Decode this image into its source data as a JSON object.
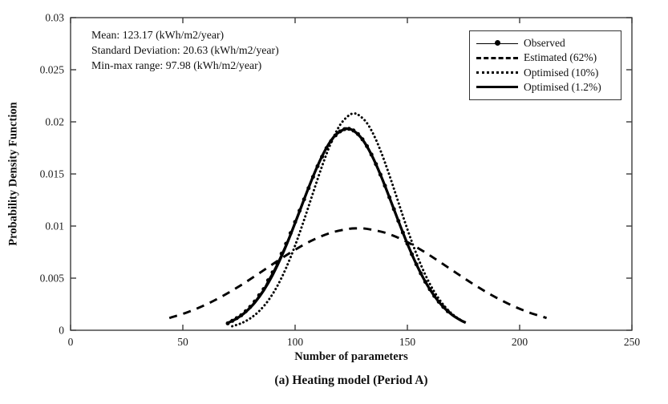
{
  "figure": {
    "caption": "(a) Heating model (Period A)"
  },
  "annotation": {
    "line1": "Mean: 123.17 (kWh/m2/year)",
    "line2": "Standard Deviation: 20.63 (kWh/m2/year)",
    "line3": "Min-max range: 97.98 (kWh/m2/year)"
  },
  "stats": {
    "mean": 123.17,
    "standard_deviation": 20.63,
    "min_max_range": 97.98,
    "units": "kWh/m2/year"
  },
  "chart_data": {
    "type": "line",
    "title": "",
    "xlabel": "Number of parameters",
    "ylabel": "Probability Density Function",
    "caption": "(a) Heating model (Period A)",
    "xlim": [
      0,
      250
    ],
    "ylim": [
      0,
      0.03
    ],
    "xticks": [
      0,
      50,
      100,
      150,
      200,
      250
    ],
    "yticks": [
      0,
      0.005,
      0.01,
      0.015,
      0.02,
      0.025,
      0.03
    ],
    "grid": false,
    "legend_position": "top-right",
    "axis_color": "#3c3c3c",
    "curve_color": "#000000",
    "series": [
      {
        "name": "Observed",
        "style": "solid-markers",
        "marker": "circle",
        "gaussian": {
          "mean": 123.17,
          "sd": 20.63,
          "x_start": 70,
          "x_end": 168
        },
        "points": [
          [
            70,
            0.00066
          ],
          [
            72,
            0.0009
          ],
          [
            74,
            0.00116
          ],
          [
            76,
            0.00144
          ],
          [
            78,
            0.00182
          ],
          [
            80,
            0.00225
          ],
          [
            82,
            0.00276
          ],
          [
            84,
            0.00336
          ],
          [
            86,
            0.00395
          ],
          [
            88,
            0.0048
          ],
          [
            90,
            0.00556
          ],
          [
            92,
            0.00642
          ],
          [
            94,
            0.00735
          ],
          [
            96,
            0.00831
          ],
          [
            98,
            0.00932
          ],
          [
            100,
            0.01039
          ],
          [
            102,
            0.01148
          ],
          [
            104,
            0.01256
          ],
          [
            106,
            0.01364
          ],
          [
            108,
            0.01472
          ],
          [
            110,
            0.01574
          ],
          [
            112,
            0.01665
          ],
          [
            114,
            0.01748
          ],
          [
            116,
            0.01815
          ],
          [
            118,
            0.0187
          ],
          [
            120,
            0.01908
          ],
          [
            122,
            0.0193
          ],
          [
            124,
            0.01933
          ],
          [
            126,
            0.01917
          ],
          [
            128,
            0.01883
          ],
          [
            130,
            0.01832
          ],
          [
            132,
            0.01766
          ],
          [
            134,
            0.01686
          ],
          [
            136,
            0.01595
          ],
          [
            138,
            0.01494
          ],
          [
            140,
            0.01387
          ],
          [
            142,
            0.01276
          ],
          [
            144,
            0.01162
          ],
          [
            146,
            0.01049
          ],
          [
            148,
            0.00938
          ],
          [
            150,
            0.00831
          ],
          [
            152,
            0.00729
          ],
          [
            154,
            0.00633
          ],
          [
            156,
            0.00545
          ],
          [
            158,
            0.00465
          ],
          [
            160,
            0.00393
          ],
          [
            162,
            0.00329
          ],
          [
            164,
            0.00273
          ],
          [
            166,
            0.00224
          ],
          [
            168,
            0.00182
          ]
        ]
      },
      {
        "name": "Estimated (62%)",
        "style": "dashed",
        "gaussian": {
          "mean": 128,
          "sd": 40.8,
          "x_start": 44,
          "x_end": 212
        },
        "points": [
          [
            44,
            0.001174
          ],
          [
            52,
            0.001725
          ],
          [
            60,
            0.002438
          ],
          [
            68,
            0.003316
          ],
          [
            76,
            0.00434
          ],
          [
            84,
            0.005467
          ],
          [
            92,
            0.006625
          ],
          [
            100,
            0.007726
          ],
          [
            108,
            0.008671
          ],
          [
            116,
            0.009364
          ],
          [
            124,
            0.009731
          ],
          [
            128,
            0.009778
          ],
          [
            132,
            0.009731
          ],
          [
            140,
            0.009364
          ],
          [
            148,
            0.008671
          ],
          [
            156,
            0.007726
          ],
          [
            164,
            0.006625
          ],
          [
            172,
            0.005467
          ],
          [
            180,
            0.00434
          ],
          [
            188,
            0.003316
          ],
          [
            196,
            0.002438
          ],
          [
            204,
            0.001725
          ],
          [
            212,
            0.001174
          ]
        ]
      },
      {
        "name": "Optimised (10%)",
        "style": "dotted",
        "gaussian": {
          "mean": 126.3,
          "sd": 19.2,
          "x_start": 72,
          "x_end": 176
        },
        "points": [
          [
            72,
            0.000381
          ],
          [
            76,
            0.000672
          ],
          [
            80,
            0.001135
          ],
          [
            84,
            0.001835
          ],
          [
            88,
            0.002842
          ],
          [
            92,
            0.004214
          ],
          [
            96,
            0.005982
          ],
          [
            100,
            0.008131
          ],
          [
            104,
            0.010586
          ],
          [
            108,
            0.013195
          ],
          [
            112,
            0.01575
          ],
          [
            116,
            0.017995
          ],
          [
            120,
            0.019692
          ],
          [
            124,
            0.020631
          ],
          [
            126.3,
            0.02078
          ],
          [
            128,
            0.020699
          ],
          [
            132,
            0.019884
          ],
          [
            136,
            0.018291
          ],
          [
            140,
            0.016109
          ],
          [
            144,
            0.013586
          ],
          [
            148,
            0.010971
          ],
          [
            152,
            0.008483
          ],
          [
            156,
            0.006281
          ],
          [
            160,
            0.004453
          ],
          [
            164,
            0.003023
          ],
          [
            168,
            0.001965
          ],
          [
            172,
            0.001223
          ],
          [
            176,
            0.000729
          ]
        ]
      },
      {
        "name": "Optimised (1.2%)",
        "style": "solid-thick",
        "gaussian": {
          "mean": 123.17,
          "sd": 20.63,
          "x_start": 70,
          "x_end": 176
        },
        "points": [
          [
            70,
            0.000699
          ],
          [
            74,
            0.00113
          ],
          [
            78,
            0.00176
          ],
          [
            82,
            0.002641
          ],
          [
            86,
            0.003815
          ],
          [
            90,
            0.005309
          ],
          [
            94,
            0.007116
          ],
          [
            98,
            0.009187
          ],
          [
            102,
            0.011422
          ],
          [
            106,
            0.013676
          ],
          [
            110,
            0.015772
          ],
          [
            114,
            0.017518
          ],
          [
            118,
            0.01874
          ],
          [
            122,
            0.019306
          ],
          [
            123.17,
            0.019337
          ],
          [
            126,
            0.019156
          ],
          [
            130,
            0.018306
          ],
          [
            134,
            0.016848
          ],
          [
            138,
            0.014934
          ],
          [
            142,
            0.012749
          ],
          [
            146,
            0.010483
          ],
          [
            150,
            0.008301
          ],
          [
            154,
            0.00633
          ],
          [
            158,
            0.00465
          ],
          [
            162,
            0.003289
          ],
          [
            166,
            0.002241
          ],
          [
            170,
            0.00147
          ],
          [
            174,
            0.000929
          ],
          [
            176,
            0.000728
          ]
        ]
      }
    ]
  }
}
